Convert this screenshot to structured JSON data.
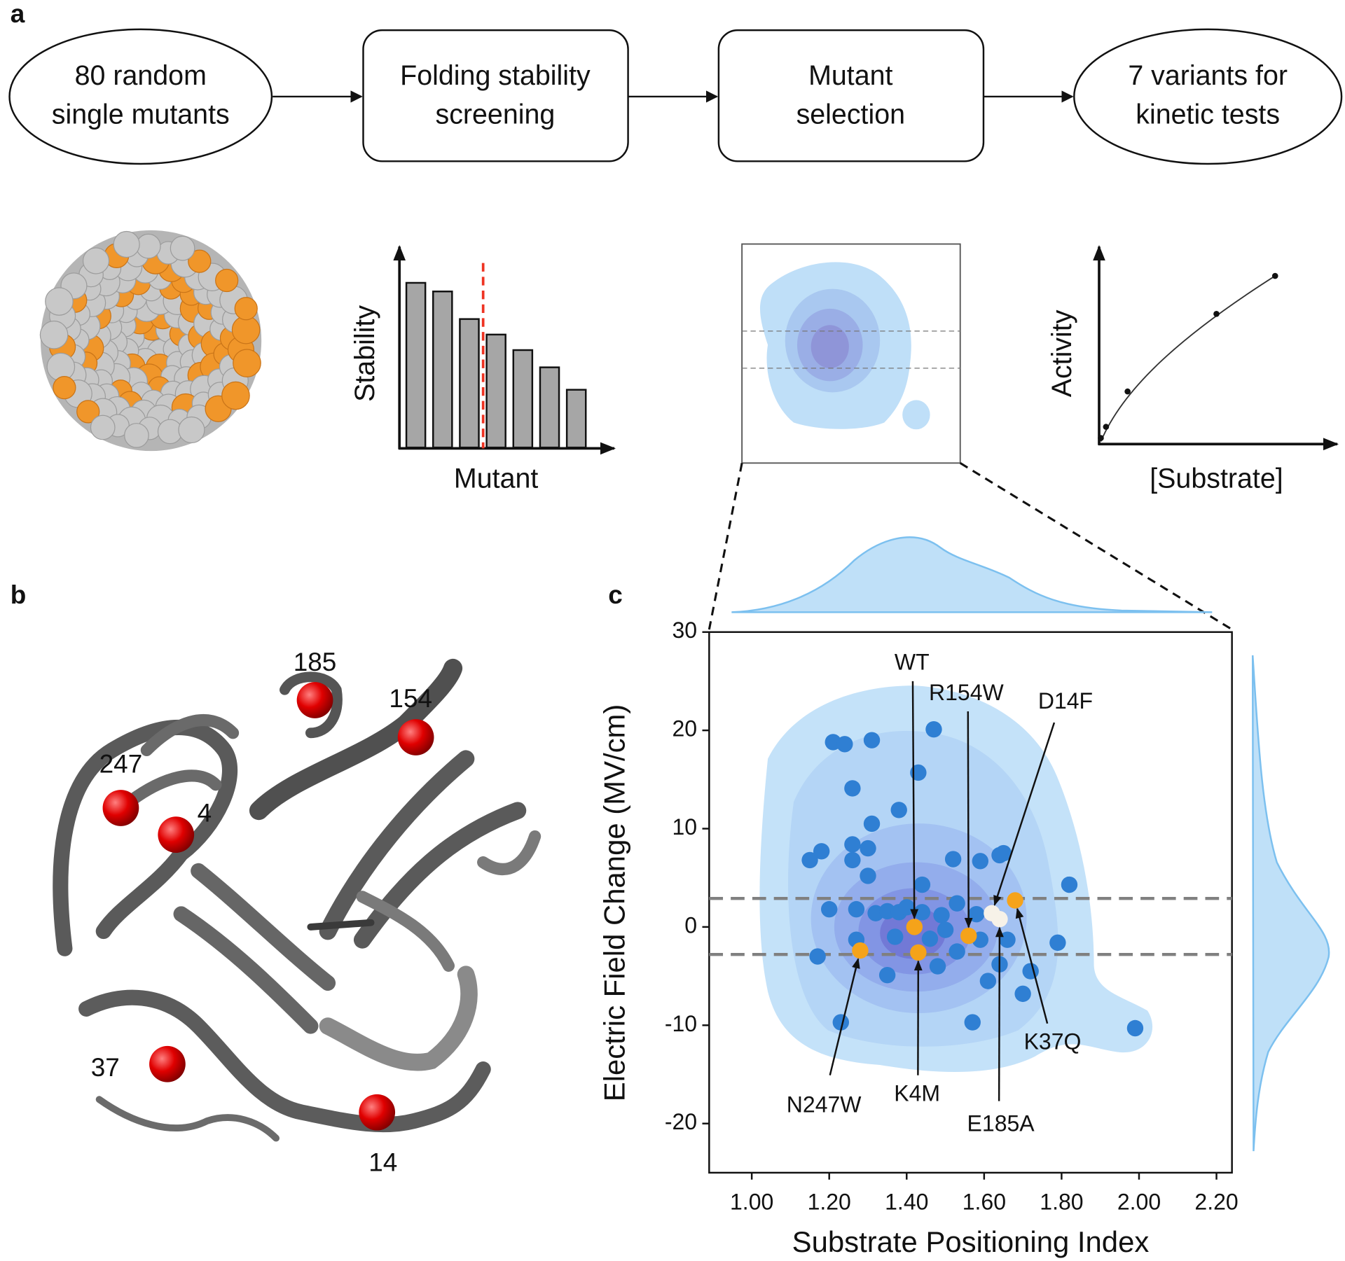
{
  "panel_labels": [
    "a",
    "b",
    "c"
  ],
  "workflow": {
    "steps": [
      {
        "lines": [
          "80 random",
          "single mutants"
        ]
      },
      {
        "lines": [
          "Folding stability",
          "screening"
        ]
      },
      {
        "lines": [
          "Mutant",
          "selection"
        ]
      },
      {
        "lines": [
          "7 variants for",
          "kinetic tests"
        ]
      }
    ]
  },
  "stability_sketch": {
    "y_label": "Stability",
    "x_label": "Mutant"
  },
  "activity_sketch": {
    "y_label": "Activity",
    "x_label": "[Substrate]"
  },
  "structure": {
    "residues": [
      "185",
      "154",
      "247",
      "4",
      "37",
      "14"
    ]
  },
  "chart_data": {
    "type": "scatter",
    "x_label": "Substrate Positioning Index",
    "y_label": "Electric Field Change (MV/cm)",
    "xlim": [
      0.89,
      2.24
    ],
    "ylim": [
      -25,
      30
    ],
    "xticks": [
      {
        "value": 1,
        "label": "1.00"
      },
      {
        "value": 1.2,
        "label": "1.20"
      },
      {
        "value": 1.4,
        "label": "1.40"
      },
      {
        "value": 1.6,
        "label": "1.60"
      },
      {
        "value": 1.8,
        "label": "1.80"
      },
      {
        "value": 2,
        "label": "2.00"
      },
      {
        "value": 2.2,
        "label": "2.20"
      }
    ],
    "yticks": [
      -20,
      -10,
      0,
      10,
      20,
      30
    ],
    "thresholds": [
      2.9,
      -2.8
    ],
    "series": [
      {
        "color": "#2f7fd3",
        "x": [
          1.21,
          1.24,
          1.31,
          1.47,
          1.43,
          1.26,
          1.38,
          1.31,
          1.15,
          1.18,
          1.26,
          1.26,
          1.3,
          1.3,
          1.44,
          1.52,
          1.59,
          1.64,
          1.65,
          1.82,
          1.2,
          1.27,
          1.32,
          1.35,
          1.38,
          1.4,
          1.44,
          1.49,
          1.53,
          1.58,
          1.27,
          1.37,
          1.46,
          1.5,
          1.59,
          1.66,
          1.17,
          1.35,
          1.48,
          1.53,
          1.64,
          1.61,
          1.72,
          1.79,
          1.7,
          1.23,
          1.57,
          1.99
        ],
        "values": [
          18.8,
          18.6,
          19.0,
          20.1,
          15.7,
          14.1,
          11.9,
          10.5,
          6.8,
          7.7,
          8.4,
          6.8,
          8.0,
          5.2,
          4.3,
          6.9,
          6.7,
          7.3,
          7.5,
          4.3,
          1.8,
          1.8,
          1.4,
          1.6,
          1.5,
          2.0,
          1.5,
          1.2,
          2.4,
          1.3,
          -1.3,
          -1.0,
          -1.2,
          -0.3,
          -1.3,
          -1.3,
          -3.0,
          -4.9,
          -4.0,
          -2.5,
          -3.8,
          -5.5,
          -4.5,
          -1.6,
          -6.8,
          -9.7,
          -9.7,
          -10.3
        ]
      },
      {
        "color": "#f5a31a",
        "x": [
          1.28,
          1.42,
          1.43,
          1.56,
          1.68
        ],
        "values": [
          -2.4,
          0.0,
          -2.6,
          -0.9,
          2.7
        ],
        "labels": [
          "N247W",
          "WT",
          "K4M",
          "R154W",
          "K37Q"
        ]
      },
      {
        "color": "#f7f2e8",
        "x": [
          1.62,
          1.64
        ],
        "values": [
          1.4,
          0.8
        ],
        "labels": [
          "D14F",
          "E185A"
        ]
      }
    ]
  }
}
